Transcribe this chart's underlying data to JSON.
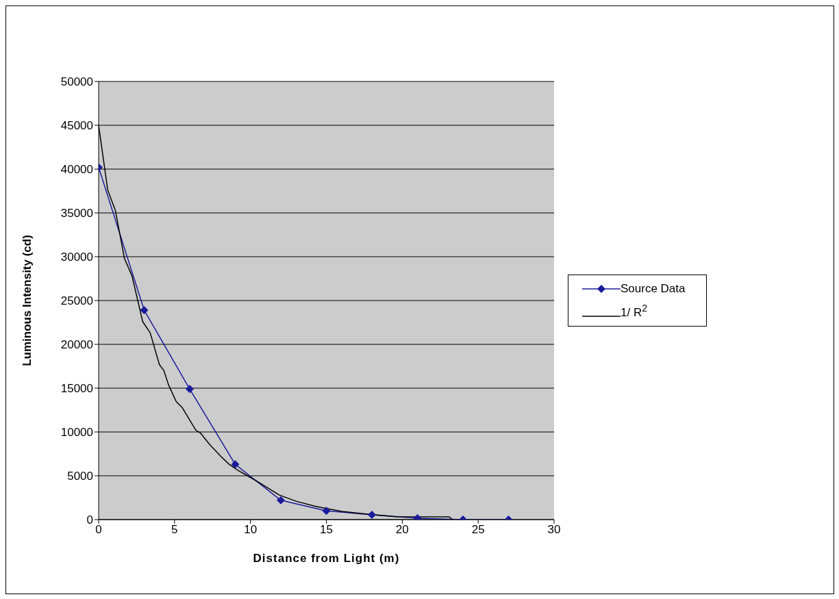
{
  "chart_data": {
    "type": "line",
    "xlabel": "Distance from Light (m)",
    "ylabel": "Luminous Intensity (cd)",
    "xlim": [
      0,
      30
    ],
    "xticks": [
      0,
      5,
      10,
      15,
      20,
      25,
      30
    ],
    "ylim": [
      0,
      50000
    ],
    "yticks": [
      0,
      5000,
      10000,
      15000,
      20000,
      25000,
      30000,
      35000,
      40000,
      45000,
      50000
    ],
    "grid": "y",
    "legend": "right",
    "line_style": "solid",
    "series": [
      {
        "name": "Source Data",
        "color": "#1a1a9c",
        "marker": "diamond",
        "x": [
          0,
          3,
          6,
          9,
          12,
          15,
          18,
          21,
          24,
          27
        ],
        "values": [
          40200,
          23900,
          14900,
          6300,
          2200,
          1000,
          550,
          160,
          0,
          0
        ]
      },
      {
        "name": "1/ R$^{2}$",
        "color": "#000000",
        "marker": "none",
        "x": [
          0,
          0.6,
          1.1,
          1.7,
          2.2,
          2.9,
          3.4,
          4,
          4.3,
          4.6,
          5.1,
          5.5,
          6.4,
          6.7,
          7.3,
          8,
          8.6,
          9.2,
          9.8,
          10.5,
          11.9,
          13,
          14.3,
          16,
          17.7,
          19.6,
          23.1,
          23.3
        ],
        "values": [
          45000,
          37600,
          35300,
          29800,
          27800,
          22600,
          21300,
          17700,
          17000,
          15400,
          13500,
          12800,
          10200,
          9900,
          8600,
          7300,
          6300,
          5600,
          5000,
          4300,
          2800,
          2100,
          1500,
          940,
          630,
          340,
          310,
          0
        ]
      }
    ]
  }
}
